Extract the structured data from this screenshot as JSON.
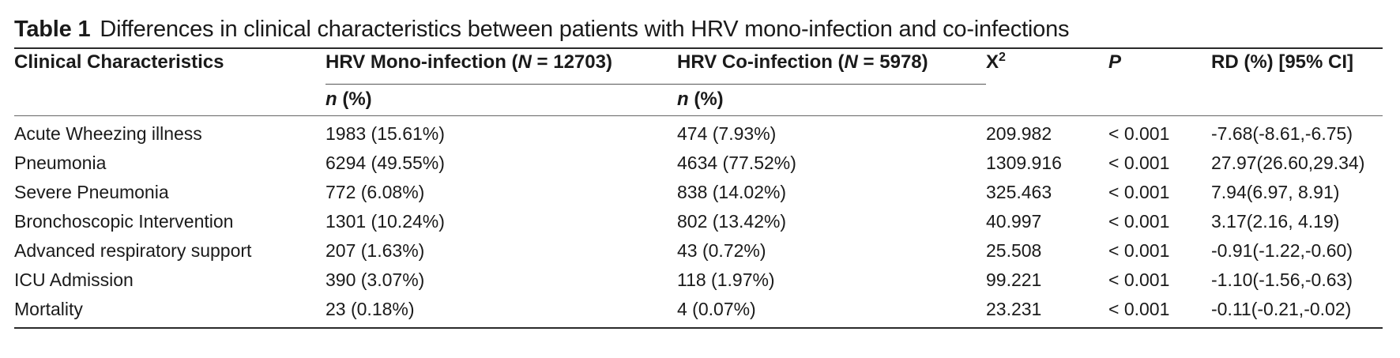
{
  "caption": {
    "label": "Table 1",
    "text": "Differences in clinical characteristics between patients with HRV mono-infection and co-infections"
  },
  "header": {
    "col0": "Clinical Characteristics",
    "col1_prefix": "HRV Mono-infection (",
    "col1_n": "N",
    "col1_suffix": " = 12703)",
    "col2_prefix": "HRV Co-infection (",
    "col2_n": "N",
    "col2_suffix": " = 5978)",
    "col3_base": "X",
    "col3_sup": "2",
    "col4": "P",
    "col5": "RD (%) [95% CI]",
    "sub_n": "n",
    "sub_pct": " (%)"
  },
  "rows": [
    {
      "label": "Acute Wheezing illness",
      "mono": "1983 (15.61%)",
      "co": "474 (7.93%)",
      "x2": "209.982",
      "p": "< 0.001",
      "rd": "-7.68(-8.61,-6.75)"
    },
    {
      "label": "Pneumonia",
      "mono": "6294 (49.55%)",
      "co": "4634 (77.52%)",
      "x2": "1309.916",
      "p": "< 0.001",
      "rd": "27.97(26.60,29.34)"
    },
    {
      "label": "Severe Pneumonia",
      "mono": "772 (6.08%)",
      "co": "838 (14.02%)",
      "x2": "325.463",
      "p": "< 0.001",
      "rd": "7.94(6.97, 8.91)"
    },
    {
      "label": "Bronchoscopic Intervention",
      "mono": "1301 (10.24%)",
      "co": "802 (13.42%)",
      "x2": "40.997",
      "p": "< 0.001",
      "rd": "3.17(2.16, 4.19)"
    },
    {
      "label": "Advanced respiratory support",
      "mono": "207 (1.63%)",
      "co": "43 (0.72%)",
      "x2": "25.508",
      "p": "< 0.001",
      "rd": "-0.91(-1.22,-0.60)"
    },
    {
      "label": "ICU Admission",
      "mono": "390 (3.07%)",
      "co": "118 (1.97%)",
      "x2": "99.221",
      "p": "< 0.001",
      "rd": "-1.10(-1.56,-0.63)"
    },
    {
      "label": "Mortality",
      "mono": "23 (0.18%)",
      "co": "4 (0.07%)",
      "x2": "23.231",
      "p": "< 0.001",
      "rd": "-0.11(-0.21,-0.02)"
    }
  ]
}
